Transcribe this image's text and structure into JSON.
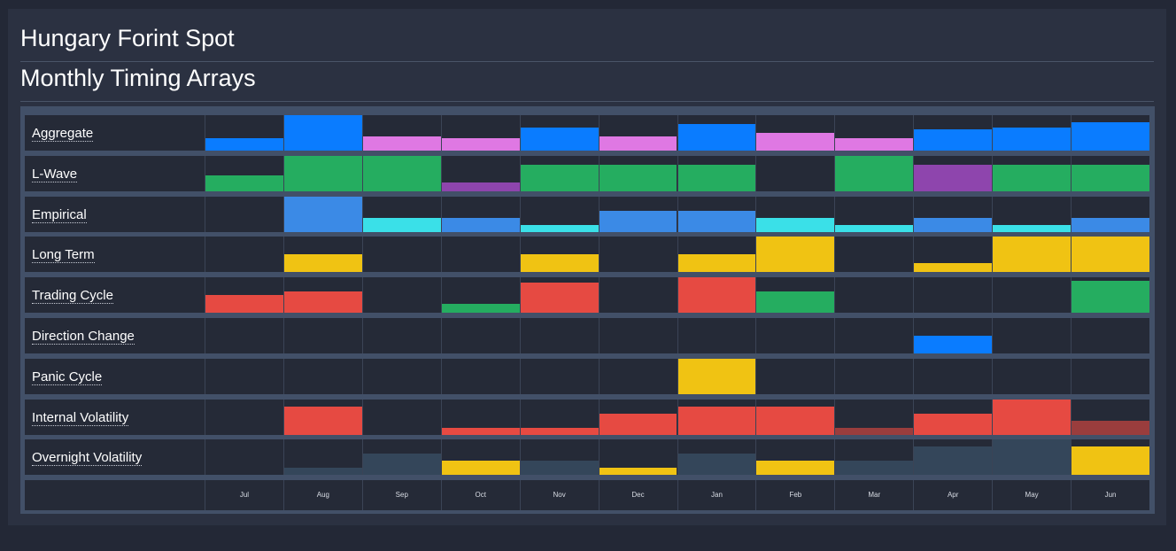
{
  "header": {
    "title": "Hungary Forint Spot",
    "subtitle": "Monthly Timing Arrays"
  },
  "chart_data": {
    "type": "heatmap",
    "categories": [
      "Jul",
      "Aug",
      "Sep",
      "Oct",
      "Nov",
      "Dec",
      "Jan",
      "Feb",
      "Mar",
      "Apr",
      "May",
      "Jun"
    ],
    "scale_max": 10,
    "colors": {
      "blue": "#0a7cff",
      "pink": "#df78e3",
      "green": "#25ad60",
      "purple": "#8e45ad",
      "skyblue": "#3b8ae6",
      "cyan": "#3ae0e8",
      "yellow": "#f0c313",
      "red": "#e64a42",
      "darkred": "#9a3d3d",
      "slate": "#34465a"
    },
    "rows": [
      {
        "label": "Aggregate",
        "cells": [
          [
            3.5,
            "blue"
          ],
          [
            10,
            "blue"
          ],
          [
            4,
            "pink"
          ],
          [
            3.5,
            "pink"
          ],
          [
            6.5,
            "blue"
          ],
          [
            4,
            "pink"
          ],
          [
            7.5,
            "blue"
          ],
          [
            5,
            "pink"
          ],
          [
            3.5,
            "pink"
          ],
          [
            6,
            "blue"
          ],
          [
            6.5,
            "blue"
          ],
          [
            8,
            "blue"
          ]
        ]
      },
      {
        "label": "L-Wave",
        "cells": [
          [
            4.5,
            "green"
          ],
          [
            10,
            "green"
          ],
          [
            10,
            "green"
          ],
          [
            2.5,
            "purple"
          ],
          [
            7.5,
            "green"
          ],
          [
            7.5,
            "green"
          ],
          [
            7.5,
            "green"
          ],
          [
            0,
            "green"
          ],
          [
            10,
            "green"
          ],
          [
            7.5,
            "purple"
          ],
          [
            7.5,
            "green"
          ],
          [
            7.5,
            "green"
          ]
        ]
      },
      {
        "label": "Empirical",
        "cells": [
          [
            0,
            "skyblue"
          ],
          [
            10,
            "skyblue"
          ],
          [
            4,
            "cyan"
          ],
          [
            4,
            "skyblue"
          ],
          [
            2,
            "cyan"
          ],
          [
            6,
            "skyblue"
          ],
          [
            6,
            "skyblue"
          ],
          [
            4,
            "cyan"
          ],
          [
            2,
            "cyan"
          ],
          [
            4,
            "skyblue"
          ],
          [
            2,
            "cyan"
          ],
          [
            4,
            "skyblue"
          ]
        ]
      },
      {
        "label": "Long Term",
        "cells": [
          [
            0,
            "yellow"
          ],
          [
            5,
            "yellow"
          ],
          [
            0,
            "yellow"
          ],
          [
            0,
            "yellow"
          ],
          [
            5,
            "yellow"
          ],
          [
            0,
            "yellow"
          ],
          [
            5,
            "yellow"
          ],
          [
            10,
            "yellow"
          ],
          [
            0,
            "yellow"
          ],
          [
            2.5,
            "yellow"
          ],
          [
            10,
            "yellow"
          ],
          [
            10,
            "yellow"
          ]
        ]
      },
      {
        "label": "Trading Cycle",
        "cells": [
          [
            5,
            "red"
          ],
          [
            6,
            "red"
          ],
          [
            0,
            "red"
          ],
          [
            2.5,
            "green"
          ],
          [
            8.5,
            "red"
          ],
          [
            0,
            "red"
          ],
          [
            10,
            "red"
          ],
          [
            6,
            "green"
          ],
          [
            0,
            "red"
          ],
          [
            0,
            "red"
          ],
          [
            0,
            "red"
          ],
          [
            9,
            "green"
          ]
        ]
      },
      {
        "label": "Direction Change",
        "cells": [
          [
            0,
            "blue"
          ],
          [
            0,
            "blue"
          ],
          [
            0,
            "blue"
          ],
          [
            0,
            "blue"
          ],
          [
            0,
            "blue"
          ],
          [
            0,
            "blue"
          ],
          [
            0,
            "blue"
          ],
          [
            0,
            "blue"
          ],
          [
            0,
            "blue"
          ],
          [
            5,
            "blue"
          ],
          [
            0,
            "blue"
          ],
          [
            0,
            "blue"
          ]
        ]
      },
      {
        "label": "Panic Cycle",
        "cells": [
          [
            0,
            "yellow"
          ],
          [
            0,
            "yellow"
          ],
          [
            0,
            "yellow"
          ],
          [
            0,
            "yellow"
          ],
          [
            0,
            "yellow"
          ],
          [
            0,
            "yellow"
          ],
          [
            10,
            "yellow"
          ],
          [
            0,
            "yellow"
          ],
          [
            0,
            "yellow"
          ],
          [
            0,
            "yellow"
          ],
          [
            0,
            "yellow"
          ],
          [
            0,
            "yellow"
          ]
        ]
      },
      {
        "label": "Internal Volatility",
        "cells": [
          [
            0,
            "red"
          ],
          [
            8,
            "red"
          ],
          [
            0,
            "red"
          ],
          [
            2,
            "red"
          ],
          [
            2,
            "red"
          ],
          [
            6,
            "red"
          ],
          [
            8,
            "red"
          ],
          [
            8,
            "red"
          ],
          [
            2,
            "darkred"
          ],
          [
            6,
            "red"
          ],
          [
            10,
            "red"
          ],
          [
            4,
            "darkred"
          ]
        ]
      },
      {
        "label": "Overnight Volatility",
        "cells": [
          [
            0,
            "slate"
          ],
          [
            2,
            "slate"
          ],
          [
            6,
            "slate"
          ],
          [
            4,
            "yellow"
          ],
          [
            4,
            "slate"
          ],
          [
            2,
            "yellow"
          ],
          [
            6,
            "slate"
          ],
          [
            4,
            "yellow"
          ],
          [
            4,
            "slate"
          ],
          [
            8,
            "slate"
          ],
          [
            10,
            "slate"
          ],
          [
            8,
            "yellow"
          ]
        ]
      }
    ]
  }
}
